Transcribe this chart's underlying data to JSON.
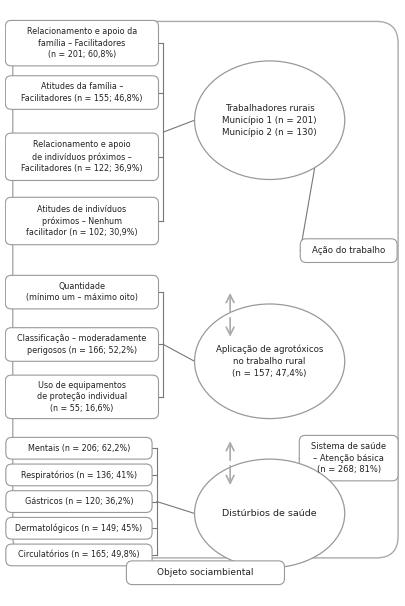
{
  "bg_color": "#ffffff",
  "box_color": "#ffffff",
  "box_edge": "#999999",
  "text_color": "#222222",
  "left_boxes_top": [
    "Relacionamento e apoio da\nfamília – Facilitadores\n(n = 201; 60,8%)",
    "Atitudes da família –\nFacilitadores (n = 155; 46,8%)",
    "Relacionamento e apoio\nde indivíduos próximos –\nFacilitadores (n = 122; 36,9%)",
    "Atitudes de indivíduos\npróximos – Nenhum\nfacilitador (n = 102; 30,9%)"
  ],
  "left_boxes_mid": [
    "Quantidade\n(mínimo um – máximo oito)",
    "Classificação – moderadamente\nperigosos (n = 166; 52,2%)",
    "Uso de equipamentos\nde proteção individual\n(n = 55; 16,6%)"
  ],
  "left_boxes_bot": [
    "Mentais (n = 206; 62,2%)",
    "Respiratórios (n = 136; 41%)",
    "Gástricos (n = 120; 36,2%)",
    "Dermatológicos (n = 149; 45%)",
    "Circulatórios (n = 165; 49,8%)"
  ],
  "ellipse_top_text": "Trabalhadores rurais\nMunicípio 1 (n = 201)\nMunicípio 2 (n = 130)",
  "ellipse_mid_text": "Aplicação de agrotóxicos\nno trabalho rural\n(n = 157; 47,4%)",
  "ellipse_bot_text": "Distúrbios de saúde",
  "right_box_top_text": "Ação do trabalho",
  "right_box_bot_text": "Sistema de saúde\n– Atenção básica\n(n = 268; 81%)",
  "bottom_box_text": "Objeto sociambiental",
  "outer_bracket_color": "#aaaaaa",
  "connector_color": "#777777",
  "arrow_color": "#aaaaaa"
}
